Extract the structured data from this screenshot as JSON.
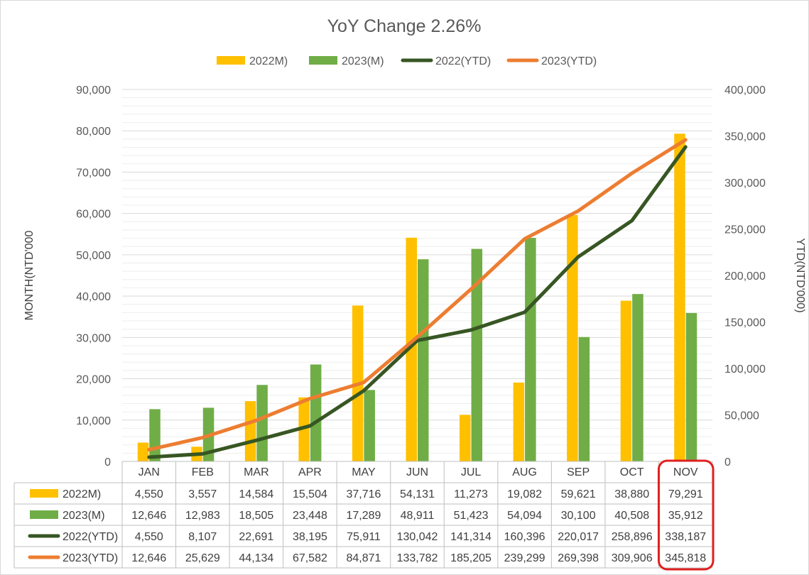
{
  "chart_data": {
    "type": "bar",
    "title": "YoY Change 2.26%",
    "ylabel_left": "MONTH(NTD'000",
    "ylabel_right": "YTD(NTD'000)",
    "categories": [
      "JAN",
      "FEB",
      "MAR",
      "APR",
      "MAY",
      "JUN",
      "JUL",
      "AUG",
      "SEP",
      "OCT",
      "NOV"
    ],
    "ylim_left": [
      0,
      90000
    ],
    "ylim_right": [
      0,
      400000
    ],
    "left_ticks": [
      "0",
      "10,000",
      "20,000",
      "30,000",
      "40,000",
      "50,000",
      "60,000",
      "70,000",
      "80,000",
      "90,000"
    ],
    "right_ticks": [
      "0",
      "50,000",
      "100,000",
      "150,000",
      "200,000",
      "250,000",
      "300,000",
      "350,000",
      "400,000"
    ],
    "grid": true,
    "legend_position": "top",
    "highlighted_category": "NOV",
    "series": [
      {
        "name": "2022M)",
        "type": "bar",
        "axis": "left",
        "color": "#FFC000",
        "values": [
          4550,
          3557,
          14584,
          15504,
          37716,
          54131,
          11273,
          19082,
          59621,
          38880,
          79291
        ],
        "labels": [
          "4,550",
          "3,557",
          "14,584",
          "15,504",
          "37,716",
          "54,131",
          "11,273",
          "19,082",
          "59,621",
          "38,880",
          "79,291"
        ]
      },
      {
        "name": "2023(M)",
        "type": "bar",
        "axis": "left",
        "color": "#70AD47",
        "values": [
          12646,
          12983,
          18505,
          23448,
          17289,
          48911,
          51423,
          54094,
          30100,
          40508,
          35912
        ],
        "labels": [
          "12,646",
          "12,983",
          "18,505",
          "23,448",
          "17,289",
          "48,911",
          "51,423",
          "54,094",
          "30,100",
          "40,508",
          "35,912"
        ]
      },
      {
        "name": "2022(YTD)",
        "type": "line",
        "axis": "right",
        "color": "#375623",
        "values": [
          4550,
          8107,
          22691,
          38195,
          75911,
          130042,
          141314,
          160396,
          220017,
          258896,
          338187
        ],
        "labels": [
          "4,550",
          "8,107",
          "22,691",
          "38,195",
          "75,911",
          "130,042",
          "141,314",
          "160,396",
          "220,017",
          "258,896",
          "338,187"
        ]
      },
      {
        "name": "2023(YTD)",
        "type": "line",
        "axis": "right",
        "color": "#ED7D31",
        "values": [
          12646,
          25629,
          44134,
          67582,
          84871,
          133782,
          185205,
          239299,
          269398,
          309906,
          345818
        ],
        "labels": [
          "12,646",
          "25,629",
          "44,134",
          "67,582",
          "84,871",
          "133,782",
          "185,205",
          "239,299",
          "269,398",
          "309,906",
          "345,818"
        ]
      }
    ]
  },
  "colors": {
    "grid": "#D9D9D9",
    "highlight": "#E02020",
    "table_border": "#BFBFBF"
  }
}
